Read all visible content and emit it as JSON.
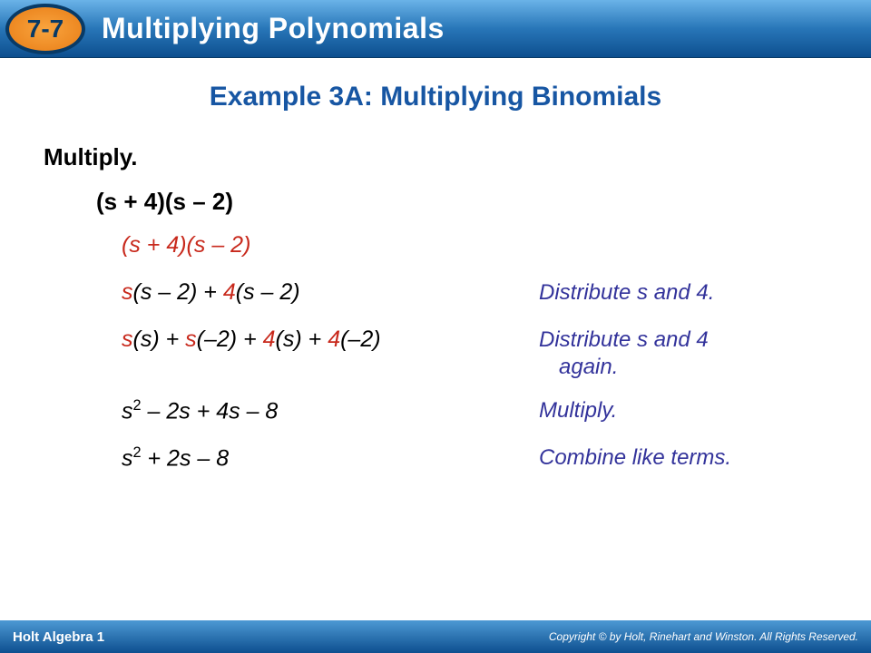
{
  "header": {
    "lesson_number": "7-7",
    "chapter_title": "Multiplying Polynomials",
    "badge_bg": "#e87d16",
    "badge_border": "#083a66",
    "title_color": "#ffffff"
  },
  "example": {
    "title": "Example 3A: Multiplying Binomials",
    "title_color": "#1756a3",
    "instruction": "Multiply.",
    "problem_html": "(s + 4)(s – 2)"
  },
  "steps": [
    {
      "expr_html": "(<span class='r'>s</span> + <span class='r'>4</span>)(s – 2)",
      "expr_color": "#c8291c",
      "note": "",
      "note_color": "#33339b"
    },
    {
      "expr_html": "<span class='r'>s</span><span class='k'>(s – 2)</span> + <span class='r'>4</span><span class='k'>(s – 2)</span>",
      "expr_color": "#000000",
      "note": "Distribute s and 4.",
      "note_color": "#33339b"
    },
    {
      "expr_html": "<span class='r'>s</span><span class='k'>(s)</span> + <span class='r'>s</span><span class='k'>(–2)</span> + <span class='r'>4</span><span class='k'>(s)</span> + <span class='r'>4</span><span class='k'>(–2)</span>",
      "expr_color": "#000000",
      "note": "Distribute s and 4",
      "note_line2": "again.",
      "note_color": "#33339b"
    },
    {
      "expr_html": "s<sup>2</sup> – 2s + 4s – 8",
      "expr_color": "#000000",
      "note": "Multiply.",
      "note_color": "#33339b"
    },
    {
      "expr_html": "s<sup>2</sup> + 2s – 8",
      "expr_color": "#000000",
      "note": "Combine like terms.",
      "note_color": "#33339b"
    }
  ],
  "footer": {
    "book": "Holt Algebra 1",
    "copyright": "Copyright © by Holt, Rinehart and Winston. All Rights Reserved."
  },
  "styles": {
    "background": "#ffffff",
    "header_gradient_top": "#6ab3e8",
    "header_gradient_bottom": "#0d4f8f",
    "footer_gradient_top": "#4d99d4",
    "footer_gradient_bottom": "#0d4f8f",
    "body_font": "Verdana, Arial, sans-serif",
    "title_fontsize": 30,
    "step_fontsize": 25,
    "note_fontsize": 24,
    "red": "#c8291c",
    "blue_note": "#33339b"
  }
}
